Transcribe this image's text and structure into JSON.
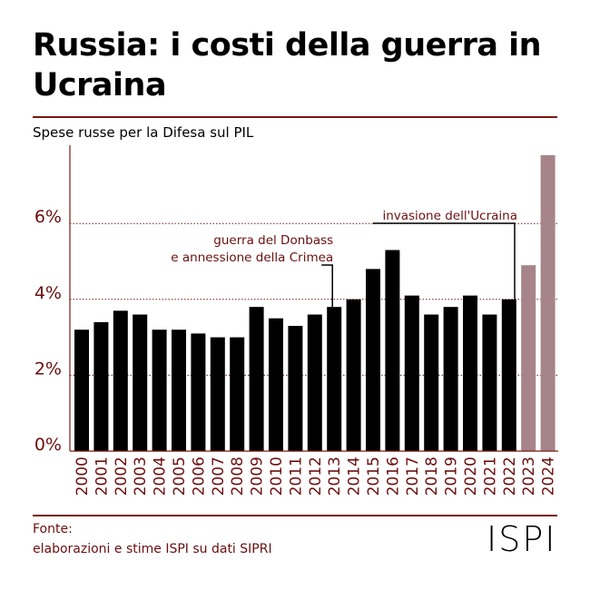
{
  "title": "Russia: i costi della guerra in Ucraina",
  "subtitle": "Spese russe per la Difesa sul PIL",
  "source_label": "Fonte:",
  "source_text": "elaborazioni e stime ISPI su dati SIPRI",
  "logo": "ISPI",
  "colors": {
    "actual": "#000000",
    "estimate": "#a68489",
    "text": "#6b0f0f",
    "grid": "#7a1a10"
  },
  "chart_data": {
    "type": "bar",
    "title": "Spese russe per la Difesa sul PIL",
    "xlabel": "",
    "ylabel": "",
    "ylim": [
      0,
      7.9
    ],
    "yticks": [
      0,
      2,
      4,
      6
    ],
    "ytick_labels": [
      "0%",
      "2%",
      "4%",
      "6%"
    ],
    "grid": true,
    "categories": [
      "2000",
      "2001",
      "2002",
      "2003",
      "2004",
      "2005",
      "2006",
      "2007",
      "2008",
      "2009",
      "2010",
      "2011",
      "2012",
      "2013",
      "2014",
      "2015",
      "2016",
      "2017",
      "2018",
      "2019",
      "2020",
      "2021",
      "2022",
      "2023",
      "2024"
    ],
    "values": [
      3.2,
      3.4,
      3.7,
      3.6,
      3.2,
      3.2,
      3.1,
      3.0,
      3.0,
      3.8,
      3.5,
      3.3,
      3.6,
      3.8,
      4.0,
      4.8,
      5.3,
      4.1,
      3.6,
      3.8,
      4.1,
      3.6,
      4.0,
      4.9,
      7.8
    ],
    "estimate_years": [
      "2023",
      "2024"
    ],
    "annotations": [
      {
        "year": "2014",
        "lines": [
          "guerra del Donbass",
          "e annessione della Crimea"
        ]
      },
      {
        "year": "2022",
        "lines": [
          "invasione dell'Ucraina"
        ]
      }
    ]
  }
}
